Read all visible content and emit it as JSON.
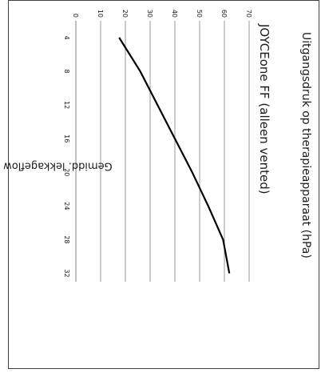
{
  "chart_data": {
    "type": "line",
    "title": "JOYCEone FF (alleen vented)",
    "xlabel": "Uitgangsdruk op therapieapparaat (hPa)",
    "ylabel": "Gemidd. lekkageflow (l/min)",
    "x_ticks": [
      "4",
      "8",
      "12",
      "16",
      "20",
      "24",
      "28",
      "32"
    ],
    "y_ticks": [
      "0",
      "10",
      "20",
      "30",
      "40",
      "50",
      "60",
      "70"
    ],
    "xlim": [
      2,
      33
    ],
    "ylim": [
      0,
      70
    ],
    "grid": true,
    "series": [
      {
        "x": [
          4,
          8,
          12,
          16,
          20,
          24,
          28,
          32
        ],
        "y": [
          17.5,
          26,
          33,
          40,
          47,
          53.5,
          59.5,
          62
        ],
        "color": "#000000"
      }
    ]
  }
}
